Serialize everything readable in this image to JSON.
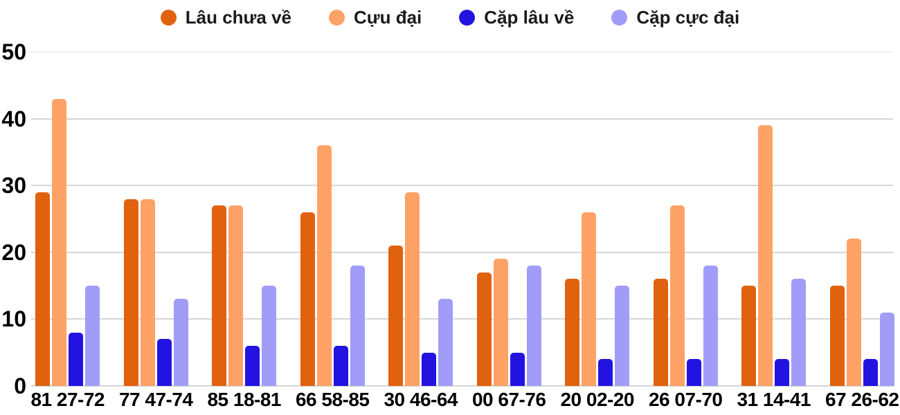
{
  "chart_data": {
    "type": "bar",
    "title": "",
    "xlabel": "",
    "ylabel": "",
    "categories": [
      "81 27-72",
      "77 47-74",
      "85 18-81",
      "66 58-85",
      "30 46-64",
      "00 67-76",
      "20 02-20",
      "26 07-70",
      "31 14-41",
      "67 26-62"
    ],
    "series": [
      {
        "name": "Lâu chưa về",
        "color": "#e0620e",
        "values": [
          29,
          28,
          27,
          26,
          21,
          17,
          16,
          16,
          15,
          15
        ]
      },
      {
        "name": "Cựu đại",
        "color": "#ffa266",
        "values": [
          43,
          28,
          27,
          36,
          29,
          19,
          26,
          27,
          39,
          22
        ]
      },
      {
        "name": "Cặp lâu về",
        "color": "#2213e0",
        "values": [
          8,
          7,
          6,
          6,
          5,
          5,
          4,
          4,
          4,
          4
        ]
      },
      {
        "name": "Cặp cực đại",
        "color": "#a09cf8",
        "values": [
          15,
          13,
          15,
          18,
          13,
          18,
          15,
          18,
          16,
          11
        ]
      }
    ],
    "ylim": [
      0,
      50
    ],
    "yticks": [
      0,
      10,
      20,
      30,
      40,
      50
    ],
    "grid": true,
    "legend_position": "top-center",
    "background": "#ffffff"
  },
  "colors": {
    "grid_line": "#d6d6d6",
    "grid_line_top": "#f2f2f2",
    "baseline": "#d6d6d6",
    "axis_text": "#000000",
    "legend_text": "#1a1a1a",
    "background": "#ffffff"
  }
}
